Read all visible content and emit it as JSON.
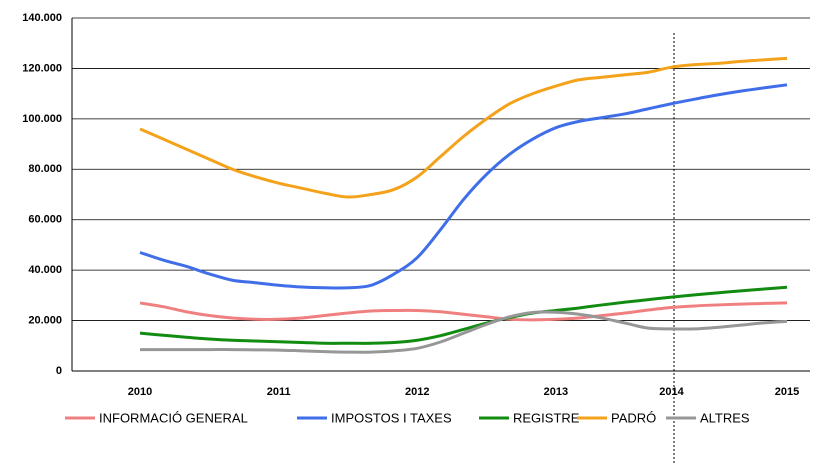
{
  "chart_data": {
    "type": "line",
    "categories": [
      "2010",
      null,
      null,
      null,
      null,
      null,
      "2011",
      null,
      null,
      null,
      null,
      null,
      "2012",
      null,
      null,
      null,
      null,
      null,
      "2013",
      null,
      null,
      null,
      null,
      "2014",
      null,
      null,
      null,
      null,
      "2015"
    ],
    "series": [
      {
        "name": "INFORMACIÓ GENERAL",
        "color": "#f08080",
        "values": [
          27000,
          25500,
          23500,
          22000,
          21000,
          20500,
          20500,
          21000,
          22000,
          23000,
          23800,
          24000,
          24000,
          23500,
          22500,
          21500,
          20500,
          20300,
          20500,
          21000,
          22000,
          23000,
          24200,
          25200,
          25800,
          26200,
          26500,
          26800,
          27000
        ]
      },
      {
        "name": "IMPOSTOS I TAXES",
        "color": "#3f6ee8",
        "values": [
          47000,
          44000,
          41500,
          38500,
          36000,
          35000,
          34000,
          33300,
          33000,
          33000,
          34000,
          38500,
          45000,
          56000,
          68000,
          78000,
          86000,
          92000,
          96500,
          99000,
          100500,
          102000,
          104000,
          106000,
          107800,
          109500,
          111000,
          112300,
          113500
        ]
      },
      {
        "name": "REGISTRE",
        "color": "#118c11",
        "values": [
          15000,
          14200,
          13400,
          12700,
          12200,
          11900,
          11600,
          11300,
          11000,
          11000,
          11000,
          11300,
          12200,
          14000,
          16500,
          19000,
          21200,
          23000,
          24000,
          25000,
          26200,
          27300,
          28300,
          29300,
          30200,
          31000,
          31800,
          32500,
          33200
        ]
      },
      {
        "name": "PADRÓ",
        "color": "#f5a21b",
        "values": [
          96000,
          92000,
          88000,
          84000,
          80000,
          77000,
          74500,
          72500,
          70500,
          69000,
          70000,
          72000,
          77000,
          85000,
          93000,
          100000,
          106000,
          110000,
          113000,
          115500,
          116500,
          117500,
          118500,
          120500,
          121500,
          122000,
          122800,
          123400,
          124000
        ]
      },
      {
        "name": "ALTRES",
        "color": "#979797",
        "values": [
          8500,
          8500,
          8500,
          8500,
          8500,
          8400,
          8300,
          8000,
          7700,
          7500,
          7500,
          8000,
          9000,
          11500,
          15000,
          18500,
          21500,
          23200,
          23300,
          22500,
          21000,
          19000,
          17000,
          16700,
          16700,
          17300,
          18200,
          19100,
          19700
        ]
      }
    ],
    "ylim": [
      0,
      140000
    ],
    "yticks": [
      0,
      {
        "value": 20000,
        "label": "20.000"
      },
      {
        "value": 40000,
        "label": "40.000"
      },
      {
        "value": 60000,
        "label": "60.000"
      },
      {
        "value": 80000,
        "label": "80.000"
      },
      {
        "value": 100000,
        "label": "100.000"
      },
      {
        "value": 120000,
        "label": "120.000"
      },
      {
        "value": 140000,
        "label": "140.000"
      }
    ],
    "grid": true,
    "legend": "bottom"
  }
}
